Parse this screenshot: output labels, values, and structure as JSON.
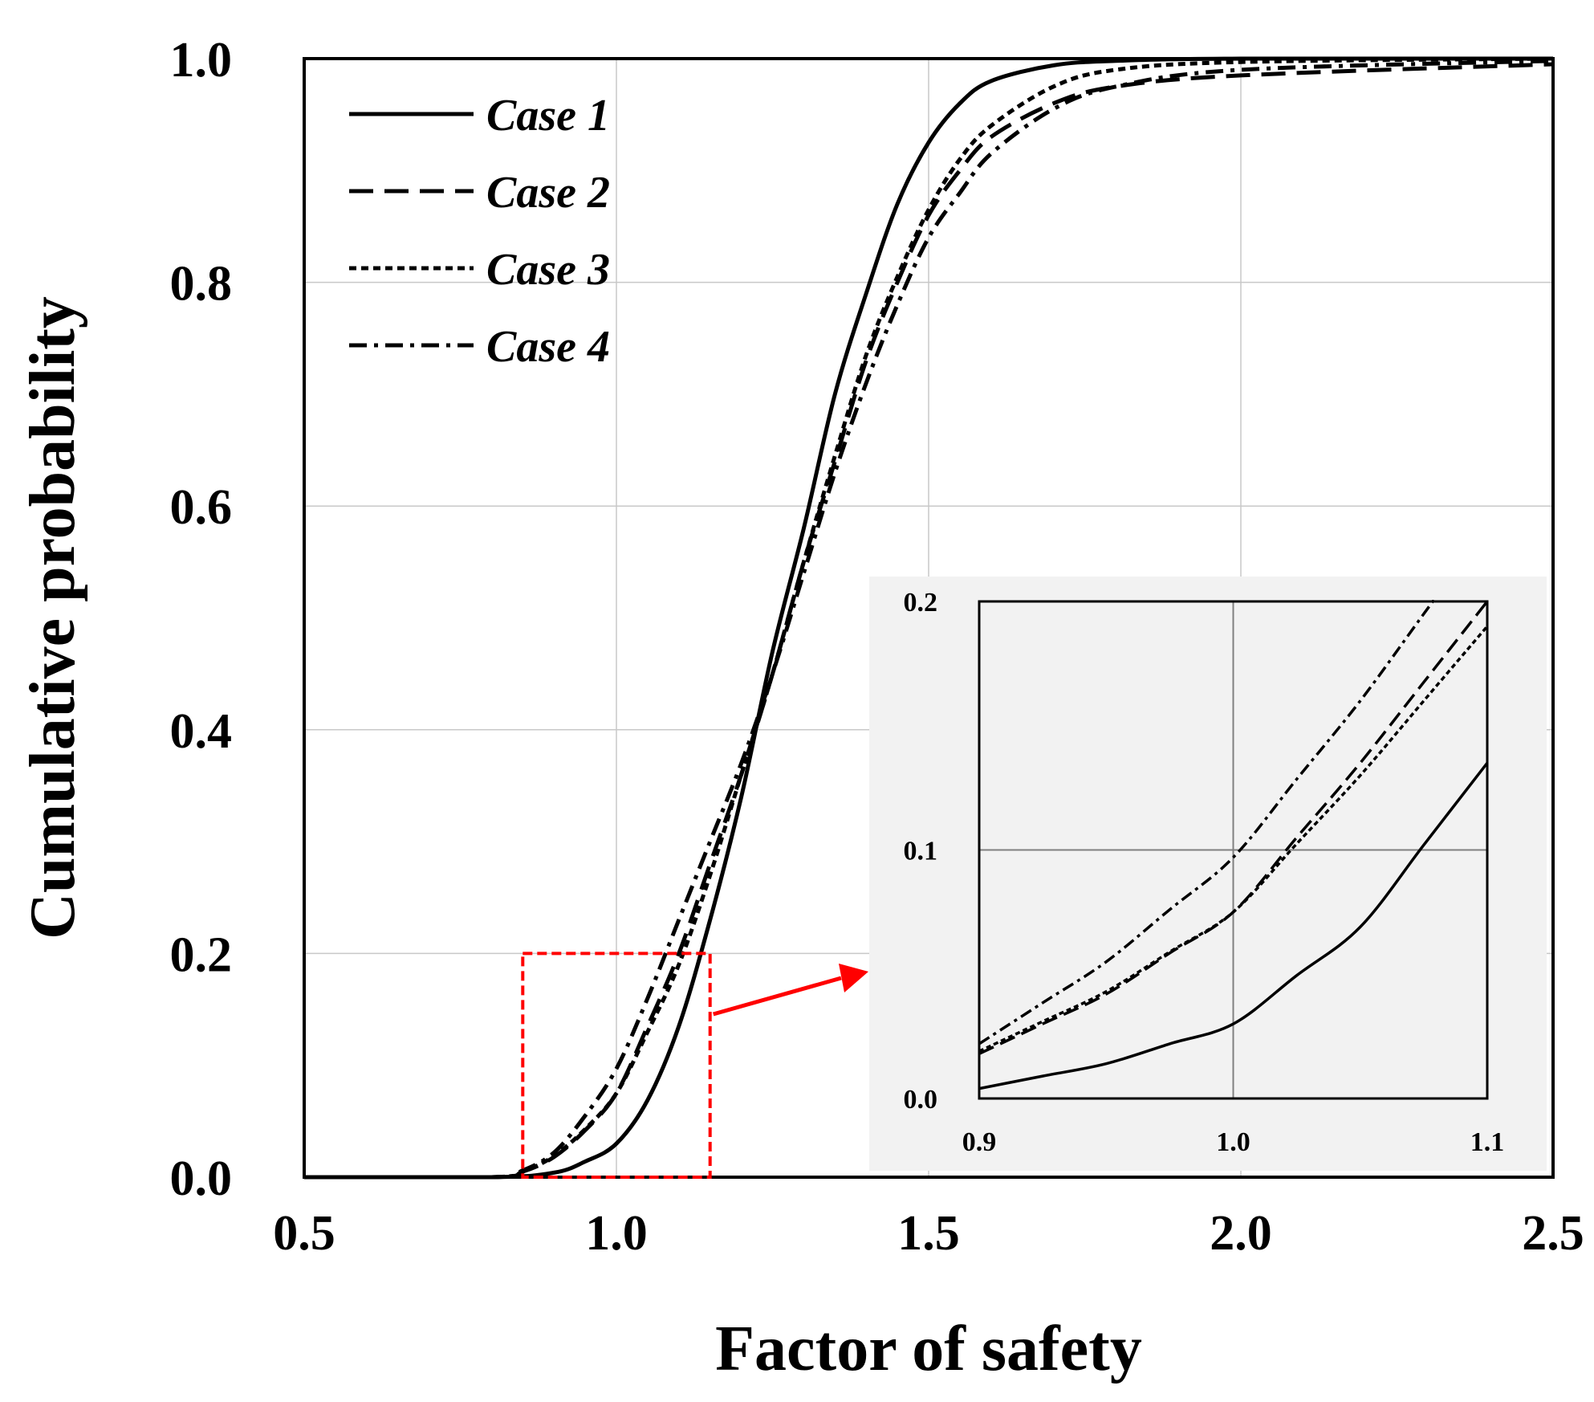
{
  "chart_data": {
    "type": "line",
    "title": "",
    "xlabel": "Factor of safety",
    "ylabel": "Cumulative probability",
    "xlim": [
      0.5,
      2.5
    ],
    "ylim": [
      0.0,
      1.0
    ],
    "xticks": [
      "0.5",
      "1.0",
      "1.5",
      "2.0",
      "2.5"
    ],
    "yticks": [
      "0.0",
      "0.2",
      "0.4",
      "0.6",
      "0.8",
      "1.0"
    ],
    "grid": true,
    "legend_position": "top-left",
    "series": [
      {
        "name": "Case 1",
        "style": "solid",
        "x": [
          0.5,
          0.8,
          0.9,
          0.95,
          1.0,
          1.05,
          1.1,
          1.15,
          1.2,
          1.25,
          1.3,
          1.35,
          1.4,
          1.45,
          1.5,
          1.55,
          1.6,
          1.7,
          1.8,
          2.0,
          2.5
        ],
        "y": [
          0.0,
          0.0,
          0.004,
          0.014,
          0.03,
          0.069,
          0.135,
          0.23,
          0.34,
          0.47,
          0.58,
          0.7,
          0.79,
          0.87,
          0.925,
          0.96,
          0.98,
          0.994,
          0.998,
          1.0,
          1.0
        ]
      },
      {
        "name": "Case 2",
        "style": "dash",
        "x": [
          0.5,
          0.8,
          0.85,
          0.9,
          0.95,
          1.0,
          1.05,
          1.1,
          1.15,
          1.2,
          1.25,
          1.3,
          1.35,
          1.4,
          1.45,
          1.5,
          1.55,
          1.6,
          1.7,
          1.8,
          2.0,
          2.5
        ],
        "y": [
          0.0,
          0.0,
          0.005,
          0.018,
          0.042,
          0.075,
          0.135,
          0.2,
          0.28,
          0.36,
          0.45,
          0.55,
          0.64,
          0.73,
          0.8,
          0.86,
          0.9,
          0.93,
          0.96,
          0.975,
          0.985,
          0.995
        ]
      },
      {
        "name": "Case 3",
        "style": "short-dash",
        "x": [
          0.5,
          0.8,
          0.85,
          0.9,
          0.95,
          1.0,
          1.05,
          1.1,
          1.15,
          1.2,
          1.25,
          1.3,
          1.35,
          1.4,
          1.45,
          1.5,
          1.55,
          1.6,
          1.7,
          1.8,
          2.0,
          2.5
        ],
        "y": [
          0.0,
          0.0,
          0.005,
          0.019,
          0.043,
          0.075,
          0.13,
          0.19,
          0.27,
          0.36,
          0.45,
          0.55,
          0.645,
          0.735,
          0.805,
          0.865,
          0.91,
          0.94,
          0.975,
          0.99,
          0.997,
          1.0
        ]
      },
      {
        "name": "Case 4",
        "style": "dash-dot",
        "x": [
          0.5,
          0.8,
          0.85,
          0.9,
          0.95,
          1.0,
          1.05,
          1.1,
          1.15,
          1.2,
          1.25,
          1.3,
          1.35,
          1.4,
          1.45,
          1.5,
          1.55,
          1.6,
          1.7,
          1.8,
          2.0,
          2.5
        ],
        "y": [
          0.0,
          0.0,
          0.006,
          0.022,
          0.055,
          0.097,
          0.16,
          0.23,
          0.3,
          0.37,
          0.45,
          0.54,
          0.63,
          0.71,
          0.78,
          0.84,
          0.88,
          0.915,
          0.955,
          0.975,
          0.99,
          0.998
        ]
      }
    ],
    "zoom_box": {
      "x": [
        0.85,
        1.15
      ],
      "y": [
        0.0,
        0.2
      ],
      "color": "#ff0000"
    },
    "inset": {
      "xlim": [
        0.9,
        1.1
      ],
      "ylim": [
        0.0,
        0.2
      ],
      "xticks": [
        "0.9",
        "1.0",
        "1.1"
      ],
      "yticks": [
        "0.0",
        "0.1",
        "0.2"
      ],
      "grid": true
    }
  }
}
